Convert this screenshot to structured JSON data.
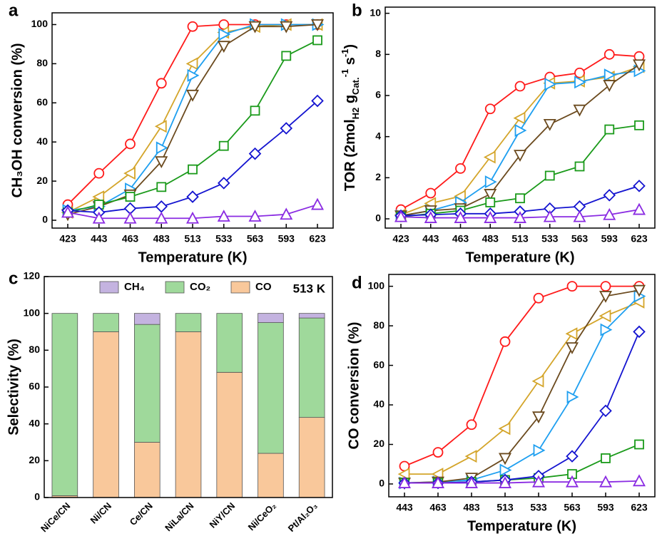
{
  "chart_data": [
    {
      "type": "line",
      "panel_label": "a",
      "xlabel": "Temperature (K)",
      "ylabel": "CH₃OH conversion (%)",
      "categories": [
        423,
        443,
        463,
        483,
        513,
        533,
        563,
        593,
        623
      ],
      "ylim": [
        -4,
        106
      ],
      "yticks": [
        0,
        20,
        40,
        60,
        80,
        100
      ],
      "series": [
        {
          "color": "#ff1a1a",
          "marker": "circle",
          "values": [
            8,
            24,
            39,
            70,
            99,
            100,
            100,
            100,
            100
          ]
        },
        {
          "color": "#d4a52a",
          "marker": "triangle-left",
          "values": [
            4,
            12,
            24,
            48,
            80,
            96,
            99,
            100,
            100
          ]
        },
        {
          "color": "#1e9ff0",
          "marker": "triangle-right",
          "values": [
            5,
            7,
            16,
            37,
            74,
            95,
            100,
            100,
            100
          ]
        },
        {
          "color": "#6b4a1e",
          "marker": "triangle-down",
          "values": [
            3,
            7,
            13,
            30,
            64,
            89,
            99,
            99,
            100
          ]
        },
        {
          "color": "#1a9a1a",
          "marker": "square",
          "values": [
            4,
            8,
            12,
            17,
            26,
            38,
            56,
            84,
            92
          ]
        },
        {
          "color": "#1414d0",
          "marker": "diamond",
          "values": [
            5,
            4,
            6,
            7,
            12,
            19,
            34,
            47,
            61
          ]
        },
        {
          "color": "#8a2be2",
          "marker": "triangle-up",
          "values": [
            4,
            1,
            1,
            1,
            1,
            2,
            2,
            3,
            8
          ]
        }
      ]
    },
    {
      "type": "line",
      "panel_label": "b",
      "xlabel": "Temperature (K)",
      "ylabel": [
        {
          "text": "TOR (2mol",
          "style": "normal"
        },
        {
          "text": "H2",
          "style": "sub"
        },
        {
          "text": " g",
          "style": "normal"
        },
        {
          "text": "Cat.",
          "style": "sub"
        },
        {
          "text": "-1",
          "style": "sup"
        },
        {
          "text": " s",
          "style": "normal"
        },
        {
          "text": "-1",
          "style": "sup"
        },
        {
          "text": ")",
          "style": "normal"
        }
      ],
      "categories": [
        423,
        443,
        463,
        483,
        513,
        533,
        563,
        593,
        623
      ],
      "ylim": [
        -0.45,
        10.3
      ],
      "yticks": [
        0,
        2,
        4,
        6,
        8,
        10
      ],
      "series": [
        {
          "color": "#ff1a1a",
          "marker": "circle",
          "values": [
            0.45,
            1.25,
            2.45,
            5.35,
            6.45,
            6.9,
            7.1,
            8.0,
            7.9
          ]
        },
        {
          "color": "#d4a52a",
          "marker": "triangle-left",
          "values": [
            0.2,
            0.75,
            1.1,
            3.0,
            4.9,
            6.6,
            6.7,
            6.9,
            7.4
          ]
        },
        {
          "color": "#1e9ff0",
          "marker": "triangle-right",
          "values": [
            0.15,
            0.4,
            0.8,
            1.8,
            4.3,
            6.55,
            6.65,
            7.0,
            7.2
          ]
        },
        {
          "color": "#6b4a1e",
          "marker": "triangle-down",
          "values": [
            0.15,
            0.4,
            0.5,
            1.2,
            3.1,
            4.6,
            5.3,
            6.5,
            7.5
          ]
        },
        {
          "color": "#1a9a1a",
          "marker": "square",
          "values": [
            0.1,
            0.25,
            0.4,
            0.8,
            1.0,
            2.1,
            2.55,
            4.35,
            4.55
          ]
        },
        {
          "color": "#1414d0",
          "marker": "diamond",
          "values": [
            0.15,
            0.2,
            0.25,
            0.25,
            0.35,
            0.5,
            0.6,
            1.15,
            1.6
          ]
        },
        {
          "color": "#8a2be2",
          "marker": "triangle-up",
          "values": [
            0.1,
            0.05,
            0.05,
            0.05,
            0.05,
            0.1,
            0.1,
            0.2,
            0.45
          ]
        }
      ]
    },
    {
      "type": "bar",
      "stacked": true,
      "panel_label": "c",
      "ylabel": "Selectivity (%)",
      "annotation": "513 K",
      "legend": "top",
      "categories": [
        "NiCe/CN",
        "Ni/CN",
        "Ce/CN",
        "NiLa/CN",
        "NiY/CN",
        "Ni/CeO₂",
        "Pt/Al₂O₃"
      ],
      "ylim": [
        0,
        120
      ],
      "yticks": [
        0,
        20,
        40,
        60,
        80,
        100,
        120
      ],
      "series": [
        {
          "name": "CH₄",
          "color": "#c4b3e0",
          "values": [
            0,
            0,
            6,
            0,
            0,
            5,
            2.5
          ]
        },
        {
          "name": "CO₂",
          "color": "#9fd99b",
          "values": [
            99,
            10,
            64,
            10,
            32,
            71,
            54
          ]
        },
        {
          "name": "CO",
          "color": "#f9c89b",
          "values": [
            1,
            90,
            30,
            90,
            68,
            24,
            43.5
          ]
        }
      ]
    },
    {
      "type": "line",
      "panel_label": "d",
      "xlabel": "Temperature (K)",
      "ylabel": "CO conversion (%)",
      "categories": [
        443,
        463,
        483,
        513,
        533,
        563,
        593,
        623
      ],
      "ylim": [
        -6.5,
        106
      ],
      "yticks": [
        0,
        20,
        40,
        60,
        80,
        100
      ],
      "series": [
        {
          "color": "#ff1a1a",
          "marker": "circle",
          "values": [
            9,
            16,
            30,
            72,
            94,
            100,
            100,
            100
          ]
        },
        {
          "color": "#d4a52a",
          "marker": "triangle-left",
          "values": [
            5,
            5,
            14,
            28,
            52,
            76,
            85,
            92
          ]
        },
        {
          "color": "#1e9ff0",
          "marker": "triangle-right",
          "values": [
            0.5,
            1,
            2,
            7,
            17,
            44,
            78,
            95
          ]
        },
        {
          "color": "#6b4a1e",
          "marker": "triangle-down",
          "values": [
            0.5,
            1,
            3,
            13,
            34,
            69,
            95,
            98
          ]
        },
        {
          "color": "#1a9a1a",
          "marker": "square",
          "values": [
            0.5,
            0.5,
            1,
            2,
            3,
            5,
            13,
            20
          ]
        },
        {
          "color": "#1414d0",
          "marker": "diamond",
          "values": [
            0.5,
            0.5,
            1,
            2,
            4,
            14,
            37,
            77
          ]
        },
        {
          "color": "#8a2be2",
          "marker": "triangle-up",
          "values": [
            0.5,
            0.5,
            0.5,
            0.5,
            1,
            1,
            1,
            1.5
          ]
        }
      ]
    }
  ]
}
